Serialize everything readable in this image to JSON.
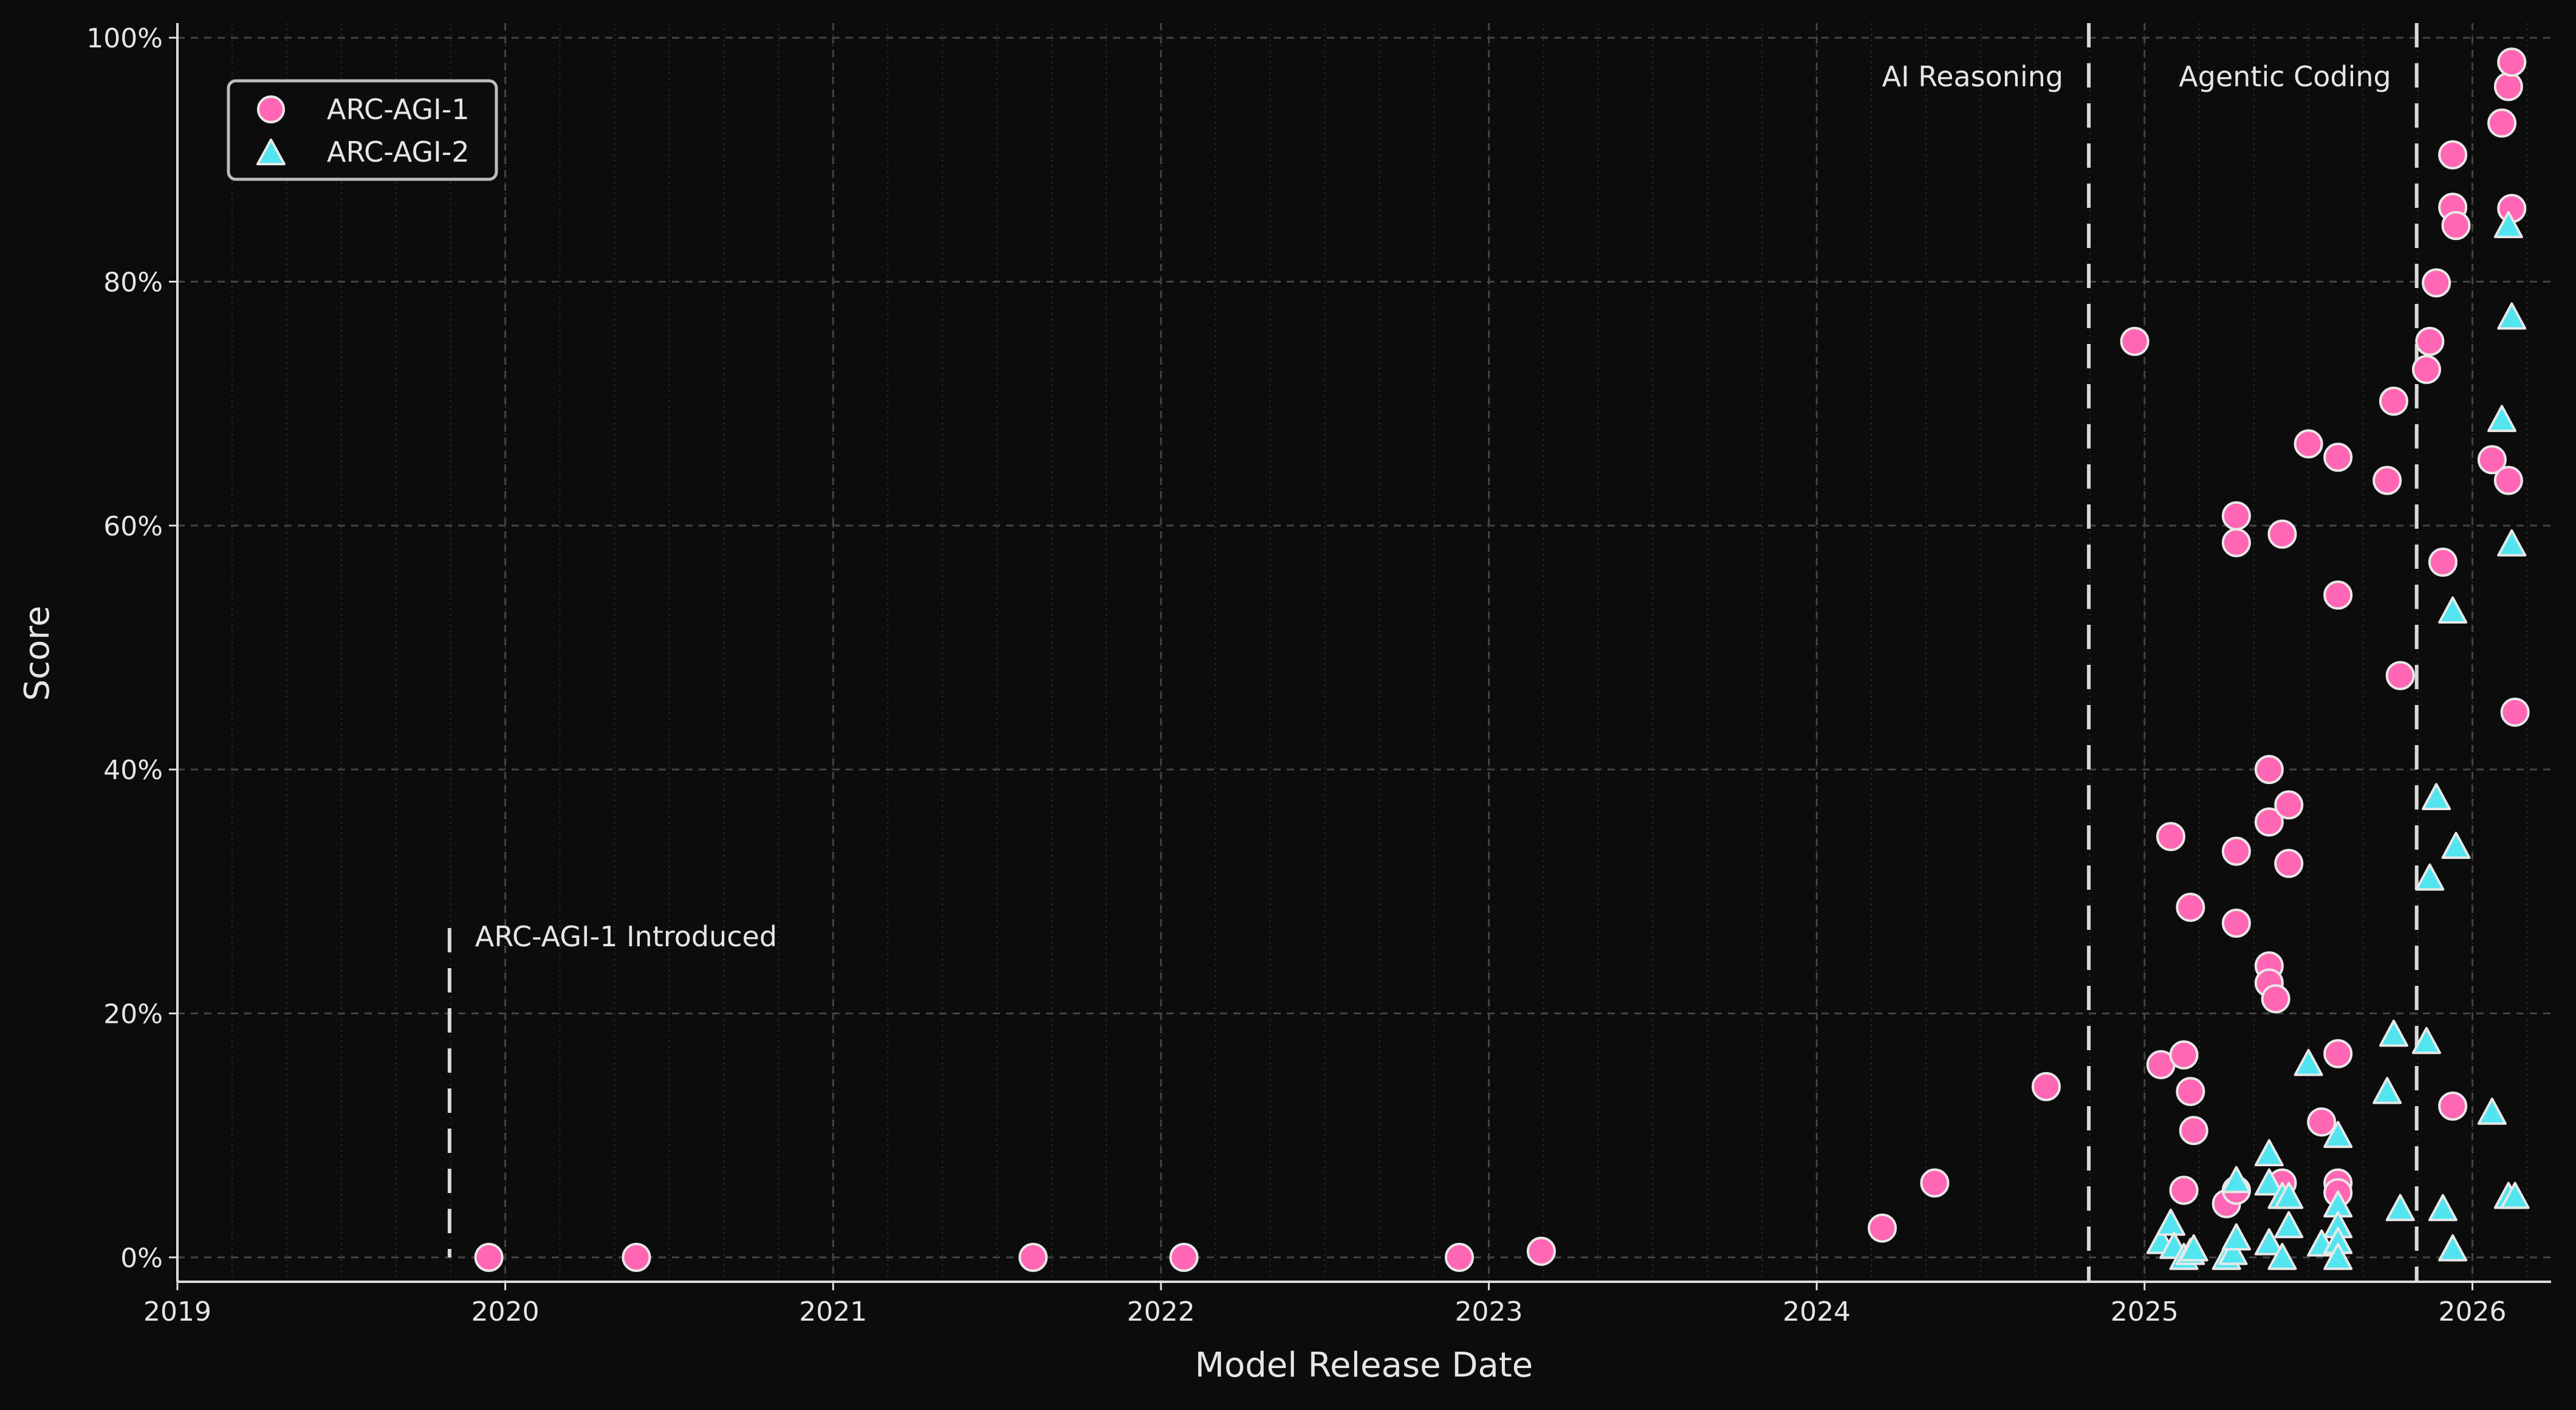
{
  "chart_data": {
    "type": "scatter",
    "title": "",
    "xlabel": "Model Release Date",
    "ylabel": "Score",
    "xlim": [
      2019,
      2026.24
    ],
    "ylim": [
      -2,
      101.2
    ],
    "x_unit": "year",
    "x_ticks": [
      "2019",
      "2020",
      "2021",
      "2022",
      "2023",
      "2024",
      "2025",
      "2026"
    ],
    "y_ticks": [
      "0%",
      "20%",
      "40%",
      "60%",
      "80%",
      "100%"
    ],
    "grid": true,
    "legend_placement": "top-left",
    "background": "#0d0c0d",
    "annotations": [
      {
        "label": "ARC-AGI-1 Introduced",
        "x": 2019.83,
        "y_range": [
          0,
          27
        ]
      },
      {
        "label": "AI Reasoning",
        "x": 2024.83,
        "y_range": [
          -2,
          101.2
        ]
      },
      {
        "label": "Agentic Coding",
        "x": 2025.83,
        "y_range": [
          -2,
          101.2
        ]
      }
    ],
    "series": [
      {
        "name": "ARC-AGI-1",
        "marker": "circle",
        "color": "#ff66b3",
        "points": [
          [
            2019.95,
            0
          ],
          [
            2020.4,
            0
          ],
          [
            2021.61,
            0
          ],
          [
            2022.07,
            0
          ],
          [
            2022.91,
            0
          ],
          [
            2023.16,
            0.5
          ],
          [
            2024.2,
            2.4
          ],
          [
            2024.36,
            6.1
          ],
          [
            2024.7,
            14.0
          ],
          [
            2024.97,
            75.1
          ],
          [
            2025.05,
            15.8
          ],
          [
            2025.08,
            34.5
          ],
          [
            2025.12,
            16.6
          ],
          [
            2025.12,
            5.5
          ],
          [
            2025.14,
            28.7
          ],
          [
            2025.14,
            13.6
          ],
          [
            2025.15,
            10.4
          ],
          [
            2025.25,
            4.4
          ],
          [
            2025.28,
            60.8
          ],
          [
            2025.28,
            58.6
          ],
          [
            2025.28,
            33.3
          ],
          [
            2025.28,
            27.4
          ],
          [
            2025.28,
            5.5
          ],
          [
            2025.38,
            40.0
          ],
          [
            2025.38,
            35.7
          ],
          [
            2025.38,
            23.9
          ],
          [
            2025.38,
            22.5
          ],
          [
            2025.4,
            21.2
          ],
          [
            2025.42,
            59.3
          ],
          [
            2025.42,
            6.1
          ],
          [
            2025.44,
            37.1
          ],
          [
            2025.44,
            32.3
          ],
          [
            2025.5,
            66.7
          ],
          [
            2025.54,
            11.1
          ],
          [
            2025.59,
            65.6
          ],
          [
            2025.59,
            54.3
          ],
          [
            2025.59,
            16.7
          ],
          [
            2025.59,
            6.1
          ],
          [
            2025.59,
            5.3
          ],
          [
            2025.74,
            63.7
          ],
          [
            2025.76,
            70.2
          ],
          [
            2025.78,
            47.7
          ],
          [
            2025.86,
            72.8
          ],
          [
            2025.87,
            75.1
          ],
          [
            2025.89,
            79.9
          ],
          [
            2025.91,
            57.0
          ],
          [
            2025.94,
            90.4
          ],
          [
            2025.94,
            86.1
          ],
          [
            2025.95,
            84.6
          ],
          [
            2025.94,
            12.4
          ],
          [
            2026.06,
            65.4
          ],
          [
            2026.09,
            93.0
          ],
          [
            2026.11,
            96.0
          ],
          [
            2026.12,
            98.0
          ],
          [
            2026.12,
            86.0
          ],
          [
            2026.11,
            63.7
          ],
          [
            2026.13,
            44.7
          ]
        ]
      },
      {
        "name": "ARC-AGI-2",
        "marker": "triangle",
        "color": "#52e5f0",
        "points": [
          [
            2025.05,
            1.3
          ],
          [
            2025.08,
            2.8
          ],
          [
            2025.09,
            0.9
          ],
          [
            2025.12,
            0
          ],
          [
            2025.14,
            0.4
          ],
          [
            2025.15,
            0.7
          ],
          [
            2025.25,
            0
          ],
          [
            2025.27,
            0.4
          ],
          [
            2025.28,
            1.6
          ],
          [
            2025.28,
            6.3
          ],
          [
            2025.38,
            8.5
          ],
          [
            2025.38,
            6.1
          ],
          [
            2025.38,
            1.2
          ],
          [
            2025.42,
            5.0
          ],
          [
            2025.42,
            0
          ],
          [
            2025.44,
            5.0
          ],
          [
            2025.44,
            2.6
          ],
          [
            2025.5,
            15.9
          ],
          [
            2025.54,
            1.1
          ],
          [
            2025.59,
            10.0
          ],
          [
            2025.59,
            4.3
          ],
          [
            2025.59,
            2.6
          ],
          [
            2025.59,
            1.3
          ],
          [
            2025.59,
            0
          ],
          [
            2025.74,
            13.6
          ],
          [
            2025.76,
            18.3
          ],
          [
            2025.78,
            4.0
          ],
          [
            2025.86,
            17.7
          ],
          [
            2025.87,
            31.1
          ],
          [
            2025.89,
            37.7
          ],
          [
            2025.91,
            4.0
          ],
          [
            2025.94,
            53.0
          ],
          [
            2025.94,
            0.7
          ],
          [
            2025.95,
            33.7
          ],
          [
            2026.06,
            11.9
          ],
          [
            2026.09,
            68.7
          ],
          [
            2026.11,
            84.6
          ],
          [
            2026.11,
            5.0
          ],
          [
            2026.12,
            77.1
          ],
          [
            2026.12,
            58.5
          ],
          [
            2026.13,
            5.0
          ]
        ]
      }
    ]
  }
}
